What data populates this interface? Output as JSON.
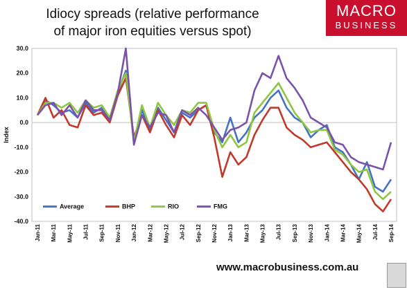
{
  "title_line1": "Idiocy spreads (relative performance",
  "title_line2": "of major iron equities versus spot)",
  "logo": {
    "line1": "MACRO",
    "line2": "BUSINESS",
    "icon": "wolf-icon"
  },
  "url": "www.macrobusiness.com.au",
  "chart_data": {
    "type": "line",
    "ylabel": "Index",
    "ylim": [
      -40,
      30
    ],
    "yticks": [
      30,
      20,
      10,
      0,
      -10,
      -20,
      -30,
      -40
    ],
    "ytick_labels": [
      "30.0",
      "20.0",
      "10.0",
      "0.0",
      "-10.0",
      "-20.0",
      "-30.0",
      "-40.0"
    ],
    "x_tick_labels": [
      "Jan-11",
      "Mar-11",
      "May-11",
      "Jul-11",
      "Sep-11",
      "Nov-11",
      "Jan-12",
      "Mar-12",
      "May-12",
      "Jul-12",
      "Sep-12",
      "Nov-12",
      "Jan-13",
      "Mar-13",
      "May-13",
      "Jul-13",
      "Sep-13",
      "Nov-13",
      "Jan-14",
      "Mar-14",
      "May-14",
      "Jul-14",
      "Sep-14"
    ],
    "x_range_months": [
      0,
      22
    ],
    "grid": false,
    "legend_position": "bottom-left",
    "series": [
      {
        "name": "Average",
        "color": "#4472c4",
        "x": [
          0,
          0.5,
          1,
          1.5,
          2,
          2.5,
          3,
          3.5,
          4,
          4.5,
          5,
          5.5,
          6,
          6.5,
          7,
          7.5,
          8,
          8.5,
          9,
          9.5,
          10,
          10.5,
          11,
          11.5,
          12,
          12.5,
          13,
          13.5,
          14,
          14.5,
          15,
          15.5,
          16,
          16.5,
          17,
          17.5,
          18,
          18.5,
          19,
          19.5,
          20,
          20.5,
          21,
          21.5,
          22
        ],
        "y": [
          3,
          9,
          7,
          4,
          5,
          2,
          8,
          4,
          6,
          1,
          12,
          21,
          -7,
          5,
          -3,
          6,
          1,
          -4,
          4,
          2,
          5,
          7,
          -4,
          -8,
          2,
          -8,
          -4,
          2,
          5,
          10,
          13,
          6,
          2,
          0,
          -6,
          -3,
          -1,
          -10,
          -12,
          -17,
          -23,
          -16,
          -26,
          -28,
          -23
        ]
      },
      {
        "name": "BHP",
        "color": "#c0392b",
        "x": [
          0,
          0.5,
          1,
          1.5,
          2,
          2.5,
          3,
          3.5,
          4,
          4.5,
          5,
          5.5,
          6,
          6.5,
          7,
          7.5,
          8,
          8.5,
          9,
          9.5,
          10,
          10.5,
          11,
          11.5,
          12,
          12.5,
          13,
          13.5,
          14,
          14.5,
          15,
          15.5,
          16,
          16.5,
          17,
          17.5,
          18,
          18.5,
          19,
          19.5,
          20,
          20.5,
          21,
          21.5,
          22
        ],
        "y": [
          3,
          10,
          2,
          5,
          -1,
          -2,
          7,
          3,
          4,
          0,
          11,
          18,
          -6,
          3,
          -4,
          5,
          -1,
          -6,
          3,
          -1,
          5,
          7,
          -6,
          -22,
          -12,
          -17,
          -14,
          -5,
          1,
          6,
          6,
          -2,
          -5,
          -7,
          -10,
          -9,
          -8,
          -12,
          -16,
          -20,
          -23,
          -27,
          -33,
          -36,
          -31
        ]
      },
      {
        "name": "RIO",
        "color": "#8dc63f",
        "x": [
          0,
          0.5,
          1,
          1.5,
          2,
          2.5,
          3,
          3.5,
          4,
          4.5,
          5,
          5.5,
          6,
          6.5,
          7,
          7.5,
          8,
          8.5,
          9,
          9.5,
          10,
          10.5,
          11,
          11.5,
          12,
          12.5,
          13,
          13.5,
          14,
          14.5,
          15,
          15.5,
          16,
          16.5,
          17,
          17.5,
          18,
          18.5,
          19,
          19.5,
          20,
          20.5,
          21,
          21.5,
          22
        ],
        "y": [
          3,
          8,
          8,
          6,
          8,
          4,
          9,
          6,
          7,
          2,
          13,
          20,
          -8,
          7,
          -2,
          8,
          3,
          -1,
          5,
          4,
          8,
          8,
          -3,
          -10,
          -5,
          -10,
          -8,
          4,
          8,
          12,
          16,
          10,
          4,
          0,
          -4,
          -3,
          -3,
          -11,
          -13,
          -17,
          -20,
          -19,
          -28,
          -31,
          -28
        ]
      },
      {
        "name": "FMG",
        "color": "#7b52ab",
        "x": [
          0,
          0.5,
          1,
          1.5,
          2,
          2.5,
          3,
          3.5,
          4,
          4.5,
          5,
          5.5,
          6,
          6.5,
          7,
          7.5,
          8,
          8.5,
          9,
          9.5,
          10,
          10.5,
          11,
          11.5,
          12,
          12.5,
          13,
          13.5,
          14,
          14.5,
          15,
          15.5,
          16,
          16.5,
          17,
          17.5,
          18,
          18.5,
          19,
          19.5,
          20,
          20.5,
          21,
          21.5,
          22
        ],
        "y": [
          3,
          7,
          8,
          3,
          7,
          2,
          9,
          5,
          5,
          1,
          12,
          30,
          -9,
          3,
          -2,
          4,
          3,
          -4,
          5,
          3,
          6,
          3,
          -2,
          -7,
          -3,
          -2,
          0,
          13,
          20,
          18,
          27,
          18,
          14,
          9,
          2,
          0,
          -2,
          -8,
          -9,
          -14,
          -16,
          -17,
          -18,
          -19,
          -8
        ]
      }
    ]
  }
}
